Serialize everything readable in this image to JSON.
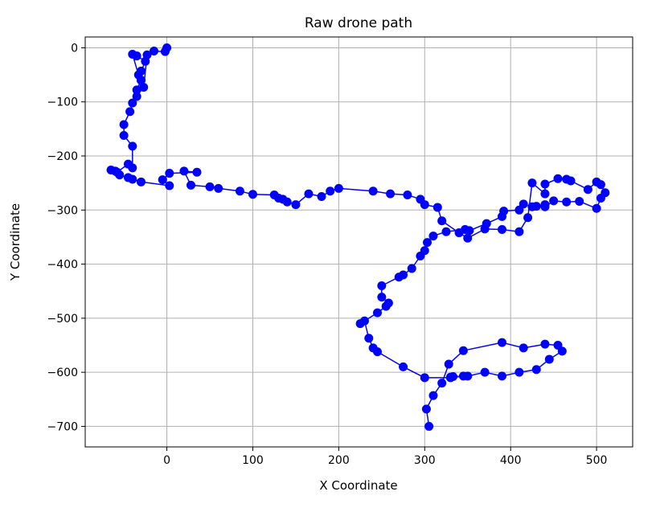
{
  "chart_data": {
    "type": "line",
    "title": "Raw drone path",
    "xlabel": "X Coordinate",
    "ylabel": "Y Coordinate",
    "xlim": [
      -95,
      542
    ],
    "ylim": [
      -738,
      20
    ],
    "xticks": [
      0,
      100,
      200,
      300,
      400,
      500
    ],
    "yticks": [
      0,
      -100,
      -200,
      -300,
      -400,
      -500,
      -600,
      -700
    ],
    "xtick_labels": [
      "0",
      "100",
      "200",
      "300",
      "400",
      "500"
    ],
    "ytick_labels": [
      "0",
      "−100",
      "−200",
      "−300",
      "−400",
      "−500",
      "−600",
      "−700"
    ],
    "grid": true,
    "color": "#0000ff",
    "marker": "circle",
    "series": [
      {
        "x": [
          305,
          302,
          310,
          320,
          328,
          345,
          390,
          415,
          440,
          455,
          460,
          445,
          430,
          410,
          390,
          370,
          350,
          333,
          330,
          345,
          330,
          300,
          275,
          245,
          240,
          235,
          230,
          225,
          245,
          255,
          258,
          250,
          250,
          270,
          275,
          285,
          295,
          300,
          303,
          310,
          325,
          347,
          352,
          372,
          390,
          392,
          410,
          415,
          425,
          430,
          440,
          440,
          450,
          465,
          480,
          500,
          505,
          510,
          505,
          500,
          490,
          470,
          465,
          455,
          440,
          440,
          425,
          420,
          410,
          390,
          370,
          350,
          340,
          320,
          315,
          300,
          295,
          280,
          260,
          240,
          200,
          190,
          180,
          165,
          150,
          140,
          135,
          130,
          125,
          100,
          85,
          60,
          50,
          28,
          20,
          35,
          3,
          -5,
          3,
          -30,
          -45,
          -40,
          -55,
          -60,
          -65,
          -58,
          -45,
          -40,
          -40,
          -50,
          -50,
          -43,
          -40,
          -35,
          -35,
          -30,
          -30,
          -25,
          -35,
          -40,
          -33,
          -30,
          -27,
          -23,
          -15,
          -2,
          0
        ],
        "y": [
          -700,
          -668,
          -643,
          -620,
          -585,
          -560,
          -545,
          -555,
          -548,
          -550,
          -561,
          -576,
          -595,
          -600,
          -607,
          -600,
          -607,
          -608,
          -609,
          -607,
          -610,
          -610,
          -590,
          -562,
          -555,
          -537,
          -505,
          -510,
          -490,
          -478,
          -472,
          -461,
          -440,
          -424,
          -420,
          -408,
          -385,
          -375,
          -360,
          -348,
          -340,
          -336,
          -338,
          -325,
          -312,
          -302,
          -300,
          -289,
          -294,
          -293,
          -290,
          -294,
          -283,
          -285,
          -284,
          -297,
          -278,
          -268,
          -253,
          -248,
          -262,
          -246,
          -243,
          -242,
          -252,
          -270,
          -250,
          -314,
          -340,
          -336,
          -335,
          -352,
          -342,
          -320,
          -295,
          -290,
          -280,
          -272,
          -270,
          -265,
          -260,
          -265,
          -275,
          -270,
          -290,
          -285,
          -280,
          -278,
          -272,
          -271,
          -265,
          -260,
          -257,
          -254,
          -228,
          -230,
          -232,
          -244,
          -255,
          -248,
          -240,
          -243,
          -235,
          -228,
          -226,
          -230,
          -215,
          -222,
          -182,
          -162,
          -142,
          -118,
          -102,
          -90,
          -78,
          -60,
          -43,
          -25,
          -15,
          -12,
          -50,
          -60,
          -73,
          -13,
          -6,
          -7,
          0
        ]
      }
    ]
  }
}
